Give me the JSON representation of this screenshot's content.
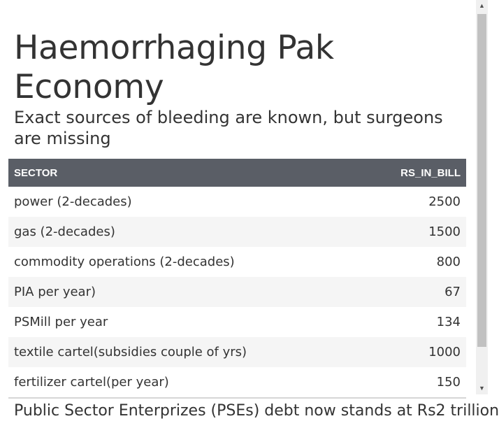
{
  "title": "Haemorrhaging Pak Economy",
  "subtitle": "Exact sources of bleeding are known, but surgeons are missing",
  "table": {
    "headers": [
      "SECTOR",
      "RS_IN_BILL"
    ],
    "rows": [
      [
        "power (2-decades)",
        "2500"
      ],
      [
        "gas (2-decades)",
        "1500"
      ],
      [
        "commodity operations (2-decades)",
        "800"
      ],
      [
        "PIA per year)",
        "67"
      ],
      [
        "PSMill per year",
        "134"
      ],
      [
        "textile cartel(subsidies couple of yrs)",
        "1000"
      ],
      [
        "fertilizer cartel(per year)",
        "150"
      ]
    ]
  },
  "caption": "Public Sector Enterprizes (PSEs) debt now stands at Rs2 trillion",
  "scrollbar": {
    "up_icon": "▲",
    "down_icon": "▼"
  }
}
